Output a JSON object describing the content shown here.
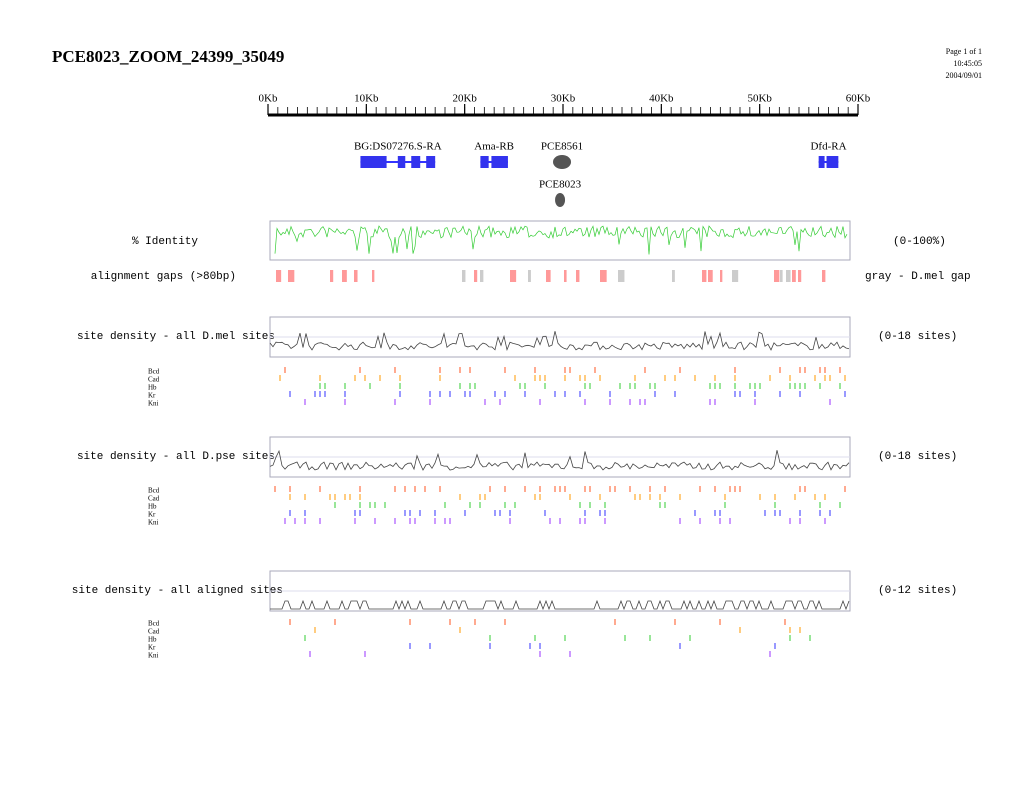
{
  "header": {
    "title": "PCE8023_ZOOM_24399_35049",
    "page": "Page 1 of 1",
    "time": "10:45:05",
    "date": "2004/09/01"
  },
  "scale": {
    "range": [
      0,
      60
    ],
    "ticks": [
      {
        "value": 0,
        "label": "0Kb"
      },
      {
        "value": 10,
        "label": "10Kb"
      },
      {
        "value": 20,
        "label": "20Kb"
      },
      {
        "value": 30,
        "label": "30Kb"
      },
      {
        "value": 40,
        "label": "40Kb"
      },
      {
        "value": 50,
        "label": "50Kb"
      },
      {
        "value": 60,
        "label": "60Kb"
      }
    ]
  },
  "genes": [
    {
      "label": "BG:DS07276.S-RA",
      "start": 9.4,
      "end": 17.0
    },
    {
      "label": "Ama-RB",
      "start": 21.6,
      "end": 24.4
    },
    {
      "label": "Dfd-RA",
      "start": 56.0,
      "end": 58.0
    }
  ],
  "elements": [
    {
      "label": "PCE8561",
      "position": 29.9
    },
    {
      "label": "PCE8023",
      "position": 29.7
    }
  ],
  "tracks": {
    "identity": {
      "label": "% Identity",
      "range": "(0-100%)"
    },
    "gaps": {
      "label": "alignment gaps (>80bp)",
      "legend": "gray - D.mel gap"
    },
    "density": [
      {
        "label": "site density - all D.mel sites",
        "range": "(0-18 sites)"
      },
      {
        "label": "site density - all D.pse sites",
        "range": "(0-18 sites)"
      },
      {
        "label": "site density - all aligned sites",
        "range": "(0-12 sites)"
      }
    ],
    "factors": [
      "Bcd",
      "Cad",
      "Hb",
      "Kr",
      "Kni"
    ]
  }
}
